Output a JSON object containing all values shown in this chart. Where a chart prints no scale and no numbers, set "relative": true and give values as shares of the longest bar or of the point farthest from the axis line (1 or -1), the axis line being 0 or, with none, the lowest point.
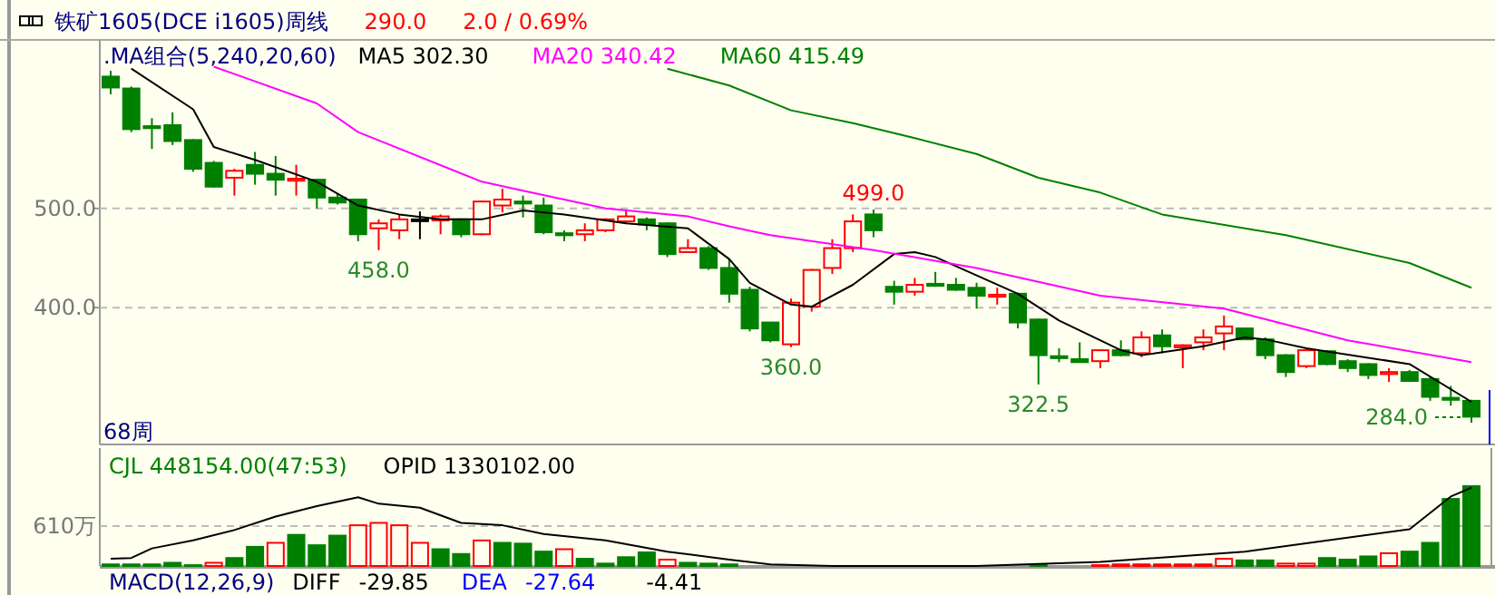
{
  "chart_data": [
    {
      "type": "candlestick",
      "title": "铁矿1605(DCE i1605)周线",
      "legend_title": ".MA组合(5,240,20,60)",
      "legend": "top left",
      "grid": "y",
      "ylim": [
        262,
        670
      ],
      "yticks": [
        {
          "value": 500,
          "label": "500.0"
        },
        {
          "value": 400,
          "label": "400.0"
        }
      ],
      "categories": [
        null,
        null,
        null,
        null,
        null,
        null,
        null,
        null,
        null,
        null,
        null,
        null,
        null,
        null,
        null,
        null,
        null,
        null,
        null,
        null,
        null,
        null,
        null,
        null,
        null,
        null,
        null,
        null,
        null,
        null,
        null,
        null,
        null,
        null,
        null,
        null,
        null,
        null,
        null,
        null,
        null,
        null,
        null,
        null,
        null,
        null,
        null,
        null,
        null,
        null,
        null,
        null,
        null,
        null,
        null,
        null,
        null,
        null,
        null,
        null,
        null,
        null,
        null,
        null,
        null,
        null,
        null
      ],
      "ohlc": [
        [
          633,
          639,
          615,
          622
        ],
        [
          621,
          623,
          577,
          580
        ],
        [
          583,
          591,
          560,
          581
        ],
        [
          584,
          597,
          564,
          568
        ],
        [
          569,
          570,
          537,
          540
        ],
        [
          546,
          548,
          521,
          522
        ],
        [
          531,
          540,
          513,
          538
        ],
        [
          544,
          557,
          524,
          535
        ],
        [
          535,
          553,
          513,
          529
        ],
        [
          528,
          544,
          513,
          530
        ],
        [
          529,
          530,
          500,
          511
        ],
        [
          511,
          515,
          504,
          506
        ],
        [
          509,
          510,
          467,
          474
        ],
        [
          480,
          489,
          458,
          485
        ],
        [
          478,
          494,
          469,
          489
        ],
        [
          489,
          497,
          469,
          489
        ],
        [
          488,
          494,
          474,
          492
        ],
        [
          489,
          490,
          471,
          474
        ],
        [
          474,
          508,
          473,
          507
        ],
        [
          503,
          520,
          496,
          509
        ],
        [
          507,
          513,
          491,
          505
        ],
        [
          503,
          511,
          474,
          476
        ],
        [
          475,
          478,
          467,
          473
        ],
        [
          474,
          485,
          467,
          478
        ],
        [
          478,
          490,
          476,
          489
        ],
        [
          487,
          498,
          485,
          492
        ],
        [
          489,
          491,
          478,
          484
        ],
        [
          485,
          486,
          451,
          454
        ],
        [
          456,
          469,
          456,
          460
        ],
        [
          460,
          462,
          438,
          440
        ],
        [
          440,
          449,
          405,
          414
        ],
        [
          418,
          421,
          376,
          379
        ],
        [
          385,
          385,
          365,
          367
        ],
        [
          363,
          409,
          360,
          405
        ],
        [
          401,
          439,
          396,
          438
        ],
        [
          440,
          469,
          434,
          460
        ],
        [
          460,
          494,
          456,
          487
        ],
        [
          494,
          499,
          471,
          478
        ],
        [
          421,
          427,
          403,
          416
        ],
        [
          416,
          430,
          412,
          423
        ],
        [
          424,
          436,
          421,
          422
        ],
        [
          423,
          430,
          417,
          418
        ],
        [
          420,
          425,
          399,
          412
        ],
        [
          411,
          420,
          403,
          413
        ],
        [
          414,
          415,
          379,
          385
        ],
        [
          388,
          389,
          322.5,
          352
        ],
        [
          351,
          359,
          345,
          349
        ],
        [
          348,
          365,
          345,
          345
        ],
        [
          346,
          358,
          339,
          357
        ],
        [
          357,
          367,
          351,
          352
        ],
        [
          354,
          376,
          350,
          370
        ],
        [
          372,
          378,
          354,
          361
        ],
        [
          360,
          363,
          339,
          362
        ],
        [
          365,
          378,
          357,
          370
        ],
        [
          374,
          392,
          357,
          381
        ],
        [
          379,
          380,
          368,
          368
        ],
        [
          368,
          370,
          348,
          352
        ],
        [
          352,
          353,
          330,
          335
        ],
        [
          341,
          359,
          339,
          357
        ],
        [
          356,
          357,
          342,
          343
        ],
        [
          346,
          348,
          335,
          339
        ],
        [
          343,
          344,
          328,
          332
        ],
        [
          333,
          339,
          325,
          335
        ],
        [
          335,
          337,
          325,
          326
        ],
        [
          328,
          330,
          306,
          310
        ],
        [
          309,
          321,
          301,
          307
        ],
        [
          306,
          307,
          284,
          290
        ]
      ],
      "series": [
        {
          "name": "MA5 302.30",
          "type": "line",
          "color": "#000000",
          "values": [
            null,
            641,
            null,
            null,
            600,
            562,
            null,
            549,
            null,
            null,
            527,
            null,
            503,
            null,
            494,
            null,
            489,
            null,
            489,
            null,
            498,
            null,
            494,
            null,
            null,
            485,
            null,
            null,
            480,
            null,
            449,
            425,
            null,
            403,
            401,
            null,
            423,
            null,
            454,
            456,
            451,
            null,
            null,
            null,
            414,
            null,
            387,
            null,
            null,
            357,
            352,
            null,
            null,
            361,
            null,
            370,
            368,
            null,
            359,
            null,
            null,
            null,
            null,
            343,
            null,
            null,
            305
          ]
        },
        {
          "name": "MA20 340.42",
          "type": "line",
          "color": "#ff00ff",
          "values": [
            null,
            null,
            null,
            null,
            null,
            643,
            null,
            null,
            null,
            null,
            606,
            null,
            577,
            null,
            null,
            null,
            null,
            null,
            527,
            null,
            518,
            null,
            null,
            null,
            500,
            null,
            null,
            null,
            492,
            null,
            482,
            null,
            473,
            null,
            null,
            null,
            null,
            458,
            null,
            null,
            null,
            null,
            440,
            null,
            null,
            null,
            null,
            null,
            412,
            null,
            null,
            null,
            null,
            null,
            399,
            null,
            null,
            null,
            null,
            null,
            367,
            null,
            null,
            null,
            null,
            null,
            345
          ]
        },
        {
          "name": "MA60 415.49",
          "type": "line",
          "color": "#008000",
          "values": [
            null,
            null,
            null,
            null,
            null,
            null,
            null,
            null,
            null,
            null,
            null,
            null,
            null,
            null,
            null,
            null,
            null,
            null,
            null,
            null,
            null,
            null,
            null,
            null,
            null,
            null,
            null,
            641,
            null,
            null,
            624,
            null,
            null,
            599,
            null,
            null,
            586,
            null,
            null,
            571,
            null,
            null,
            555,
            null,
            null,
            531,
            null,
            null,
            516,
            null,
            null,
            494,
            null,
            null,
            null,
            null,
            null,
            473,
            null,
            null,
            null,
            null,
            null,
            445,
            null,
            null,
            420
          ]
        }
      ],
      "annotations": [
        "290.0",
        "2.0 / 0.69%",
        "68周",
        "284.0",
        {
          "text": "499.0",
          "y": 499
        },
        {
          "text": "458.0",
          "y": 458
        },
        {
          "text": "360.0",
          "y": 360
        },
        {
          "text": "322.5",
          "y": 322.5
        }
      ]
    },
    {
      "type": "bar",
      "relative": true,
      "categories": [
        null,
        null,
        null,
        null,
        null,
        null,
        null,
        null,
        null,
        null,
        null,
        null,
        null,
        null,
        null,
        null,
        null,
        null,
        null,
        null,
        null,
        null,
        null,
        null,
        null,
        null,
        null,
        null,
        null,
        null,
        null,
        null,
        null,
        null,
        null,
        null,
        null,
        null,
        null,
        null,
        null,
        null,
        null,
        null,
        null,
        null,
        null,
        null,
        null,
        null,
        null,
        null,
        null,
        null,
        null,
        null,
        null,
        null,
        null,
        null,
        null,
        null,
        null,
        null,
        null,
        null,
        null
      ],
      "series": [
        {
          "name": "CJL 448154.00(47:53)",
          "values": [
            0.02,
            0.02,
            0.02,
            0.04,
            0.01,
            0.04,
            0.1,
            0.24,
            0.29,
            0.39,
            0.26,
            0.38,
            0.51,
            0.54,
            0.51,
            0.29,
            0.21,
            0.15,
            0.32,
            0.29,
            0.28,
            0.18,
            0.21,
            0.09,
            0.03,
            0.11,
            0.17,
            0.08,
            0.04,
            0.03,
            0.02,
            null,
            null,
            null,
            null,
            null,
            null,
            null,
            null,
            null,
            null,
            null,
            null,
            null,
            null,
            0.01,
            null,
            null,
            0.01,
            0.02,
            0.02,
            0.02,
            0.02,
            0.02,
            0.09,
            0.07,
            0.07,
            0.03,
            0.03,
            0.1,
            0.08,
            0.12,
            0.16,
            0.18,
            0.29,
            0.84,
            1
          ],
          "colors": [
            "#008000",
            "#008000",
            "#008000",
            "#008000",
            "#008000",
            "#ff0000",
            "#008000",
            "#008000",
            "#ff0000",
            "#008000",
            "#008000",
            "#008000",
            "#ff0000",
            "#ff0000",
            "#ff0000",
            "#ff0000",
            "#008000",
            "#008000",
            "#ff0000",
            "#008000",
            "#008000",
            "#008000",
            "#ff0000",
            "#008000",
            "#008000",
            "#008000",
            "#008000",
            "#ff0000",
            "#008000",
            "#008000",
            "#008000",
            "#008000",
            "#008000",
            "#008000",
            "#008000",
            "#008000",
            "#008000",
            "#008000",
            "#008000",
            "#008000",
            "#008000",
            "#008000",
            "#008000",
            "#008000",
            "#008000",
            "#008000",
            "#008000",
            "#008000",
            "#ff0000",
            "#ff0000",
            "#ff0000",
            "#ff0000",
            "#ff0000",
            "#ff0000",
            "#ff0000",
            "#008000",
            "#008000",
            "#ff0000",
            "#ff0000",
            "#008000",
            "#008000",
            "#008000",
            "#ff0000",
            "#008000",
            "#008000",
            "#008000",
            "#008000"
          ]
        },
        {
          "name": "OPID 1330102.00",
          "type": "line",
          "color": "#000000",
          "values": [
            0.09,
            0.1,
            0.22,
            null,
            0.32,
            null,
            0.45,
            null,
            0.62,
            null,
            0.75,
            null,
            0.86,
            0.78,
            null,
            0.73,
            null,
            0.54,
            null,
            0.51,
            null,
            0.4,
            null,
            null,
            0.32,
            null,
            null,
            0.18,
            null,
            null,
            0.08,
            null,
            0.02,
            null,
            null,
            0,
            null,
            null,
            null,
            null,
            null,
            null,
            0,
            null,
            null,
            null,
            null,
            null,
            0.05,
            null,
            null,
            null,
            null,
            null,
            null,
            0.18,
            null,
            null,
            null,
            null,
            null,
            null,
            null,
            0.46,
            null,
            0.87,
            0.98
          ]
        }
      ],
      "ref_lines": [
        {
          "axis": "y",
          "value": 0.5,
          "label": "610万",
          "line_style": "dashed"
        }
      ],
      "annotations": [
        "MACD(12,26,9)",
        "DIFF",
        "-29.85",
        "DEA",
        "-27.64",
        "-4.41"
      ]
    }
  ]
}
